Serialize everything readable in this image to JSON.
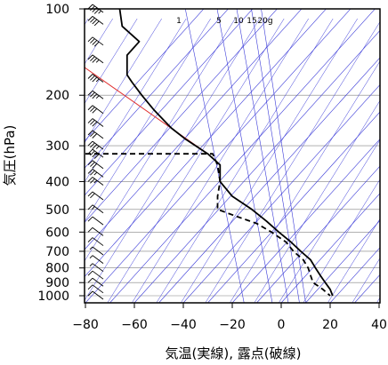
{
  "chart_data": {
    "type": "line",
    "xlabel": "気温(実線), 露点(破線)",
    "ylabel": "気圧(hPa)",
    "xlim": [
      -80,
      40
    ],
    "ylim": [
      1000,
      100
    ],
    "y_scale": "log",
    "x_ticks": [
      -80,
      -60,
      -40,
      -20,
      0,
      20,
      40
    ],
    "x_tick_labels": [
      "−80",
      "−60",
      "−40",
      "−20",
      "0",
      "20",
      "40"
    ],
    "y_ticks": [
      100,
      200,
      300,
      400,
      500,
      600,
      700,
      800,
      900,
      1000
    ],
    "y_tick_labels": [
      "100",
      "200",
      "300",
      "400",
      "500",
      "600",
      "700",
      "800",
      "900",
      "1000"
    ],
    "mixing_ratio_labels": [
      "1",
      "5",
      "10",
      "15",
      "20g"
    ],
    "colors": {
      "grid": "#808080",
      "guide": "#3a3ad8",
      "temperature": "#000000",
      "dewpoint": "#000000",
      "red_line": "#e03030"
    },
    "series": [
      {
        "style": "solid",
        "points": [
          [
            -66,
            100
          ],
          [
            -65,
            115
          ],
          [
            -58,
            130
          ],
          [
            -63,
            145
          ],
          [
            -63,
            170
          ],
          [
            -61,
            180
          ],
          [
            -57,
            200
          ],
          [
            -52,
            225
          ],
          [
            -45,
            260
          ],
          [
            -39,
            285
          ],
          [
            -30,
            320
          ],
          [
            -25,
            350
          ],
          [
            -25,
            400
          ],
          [
            -20,
            450
          ],
          [
            -12,
            500
          ],
          [
            -6,
            550
          ],
          [
            -1,
            600
          ],
          [
            4,
            650
          ],
          [
            8,
            700
          ],
          [
            12,
            750
          ],
          [
            14,
            800
          ],
          [
            16,
            850
          ],
          [
            18,
            900
          ],
          [
            20,
            950
          ],
          [
            21,
            1000
          ]
        ]
      },
      {
        "style": "dashed",
        "points": [
          [
            -80,
            320
          ],
          [
            -28,
            320
          ],
          [
            -26,
            350
          ],
          [
            -25,
            400
          ],
          [
            -26,
            450
          ],
          [
            -26,
            500
          ],
          [
            -18,
            530
          ],
          [
            -10,
            560
          ],
          [
            -4,
            600
          ],
          [
            2,
            650
          ],
          [
            5,
            700
          ],
          [
            9,
            750
          ],
          [
            11,
            800
          ],
          [
            12,
            850
          ],
          [
            13,
            900
          ],
          [
            17,
            950
          ],
          [
            20,
            1000
          ]
        ]
      }
    ],
    "wind_barbs": {
      "color": "#000000",
      "levels": [
        100,
        110,
        130,
        150,
        175,
        200,
        225,
        250,
        275,
        300,
        320,
        350,
        375,
        400,
        450,
        500,
        550,
        600,
        650,
        700,
        750,
        800,
        850,
        900,
        950,
        1000
      ],
      "speeds_kt": [
        45,
        40,
        40,
        35,
        35,
        35,
        30,
        30,
        30,
        35,
        40,
        30,
        25,
        25,
        20,
        15,
        10,
        10,
        10,
        5,
        5,
        5,
        10,
        10,
        10,
        10
      ]
    }
  }
}
